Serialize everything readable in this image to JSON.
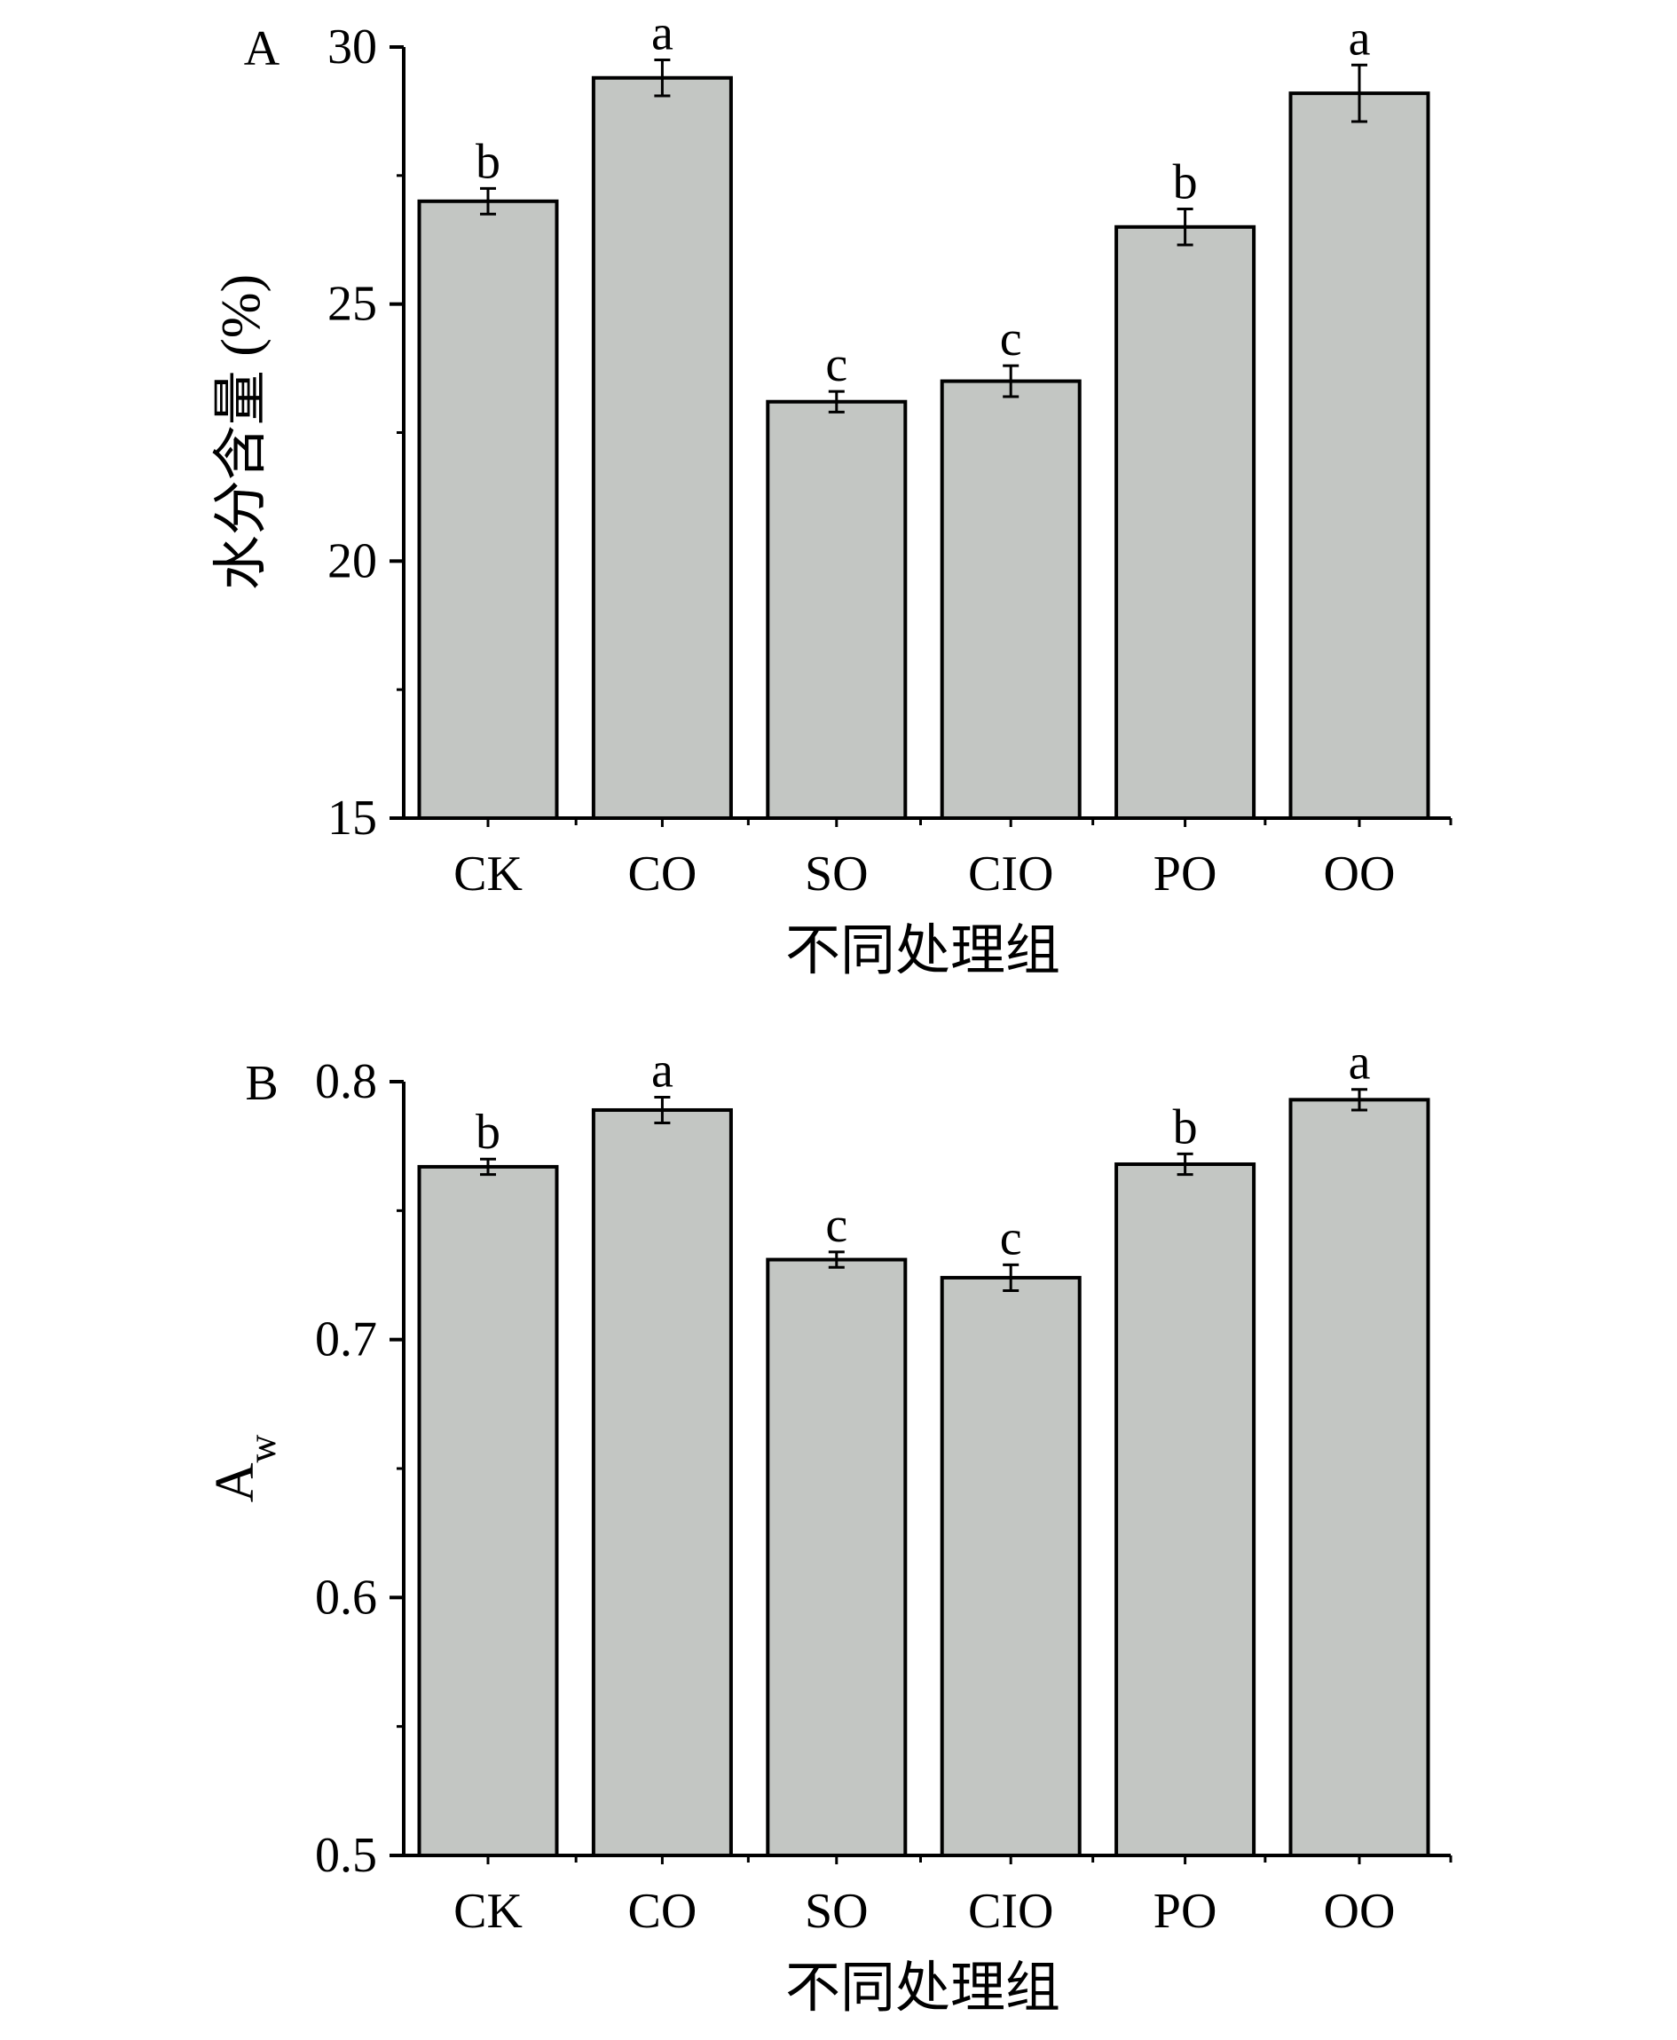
{
  "chart_data": [
    {
      "type": "bar",
      "panel_label": "A",
      "categories": [
        "CK",
        "CO",
        "SO",
        "CIO",
        "PO",
        "OO"
      ],
      "values": [
        27.0,
        29.4,
        23.1,
        23.5,
        26.5,
        29.1
      ],
      "errors": [
        0.25,
        0.35,
        0.2,
        0.3,
        0.35,
        0.55
      ],
      "significance": [
        "b",
        "a",
        "c",
        "c",
        "b",
        "a"
      ],
      "xlabel": "不同处理组",
      "ylabel": "水分含量 (%)",
      "ylim": [
        15,
        30
      ],
      "yticks": [
        "15",
        "20",
        "25",
        "30"
      ],
      "grid": false,
      "legend": "none",
      "bar_color": "#c3c6c3"
    },
    {
      "type": "bar",
      "panel_label": "B",
      "categories": [
        "CK",
        "CO",
        "SO",
        "CIO",
        "PO",
        "OO"
      ],
      "values": [
        0.767,
        0.789,
        0.731,
        0.724,
        0.768,
        0.793
      ],
      "errors": [
        0.003,
        0.005,
        0.003,
        0.005,
        0.004,
        0.004
      ],
      "significance": [
        "b",
        "a",
        "c",
        "c",
        "b",
        "a"
      ],
      "xlabel": "不同处理组",
      "ylabel": "Aw",
      "ylim": [
        0.5,
        0.8
      ],
      "yticks": [
        "0.5",
        "0.6",
        "0.7",
        "0.8"
      ],
      "grid": false,
      "legend": "none",
      "bar_color": "#c3c6c3"
    }
  ]
}
